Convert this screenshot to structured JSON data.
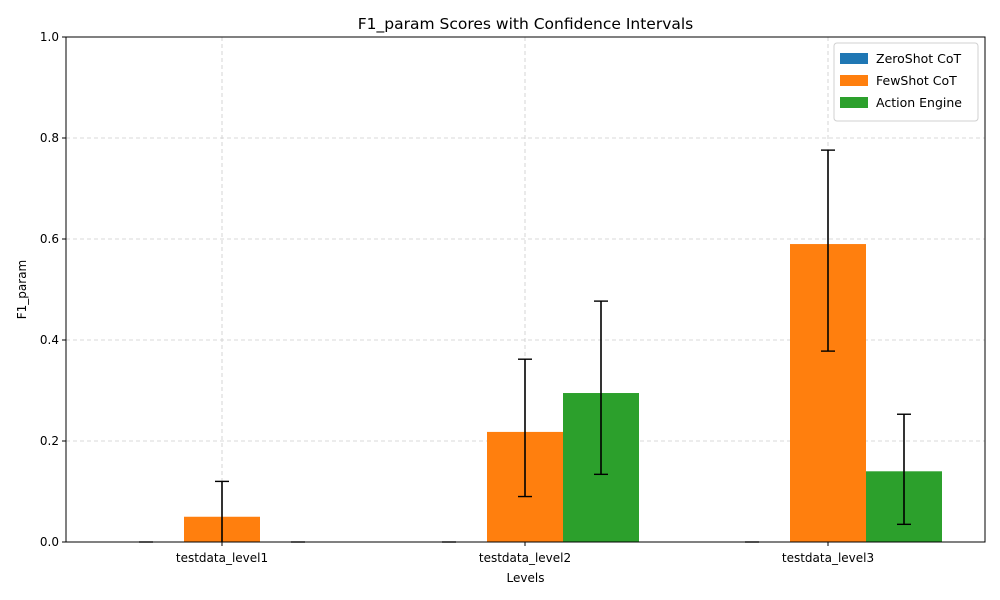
{
  "chart_data": {
    "type": "bar",
    "title": "F1_param Scores with Confidence Intervals",
    "xlabel": "Levels",
    "ylabel": "F1_param",
    "ylim": [
      0,
      1.0
    ],
    "yticks": [
      "0.0",
      "0.2",
      "0.4",
      "0.6",
      "0.8",
      "1.0"
    ],
    "grid": true,
    "legend_position": "top-right",
    "categories": [
      "testdata_level1",
      "testdata_level2",
      "testdata_level3"
    ],
    "series": [
      {
        "name": "ZeroShot CoT",
        "color": "#1f77b4",
        "values": [
          0.0,
          0.0,
          0.0
        ],
        "ci_low": [
          null,
          null,
          null
        ],
        "ci_high": [
          null,
          null,
          null
        ]
      },
      {
        "name": "FewShot CoT",
        "color": "#ff7f0e",
        "values": [
          0.05,
          0.218,
          0.59
        ],
        "ci_low": [
          -0.02,
          0.09,
          0.378
        ],
        "ci_high": [
          0.12,
          0.362,
          0.776
        ]
      },
      {
        "name": "Action Engine",
        "color": "#2ca02c",
        "values": [
          0.0,
          0.295,
          0.14
        ],
        "ci_low": [
          null,
          0.134,
          0.035
        ],
        "ci_high": [
          null,
          0.477,
          0.253
        ]
      }
    ]
  }
}
